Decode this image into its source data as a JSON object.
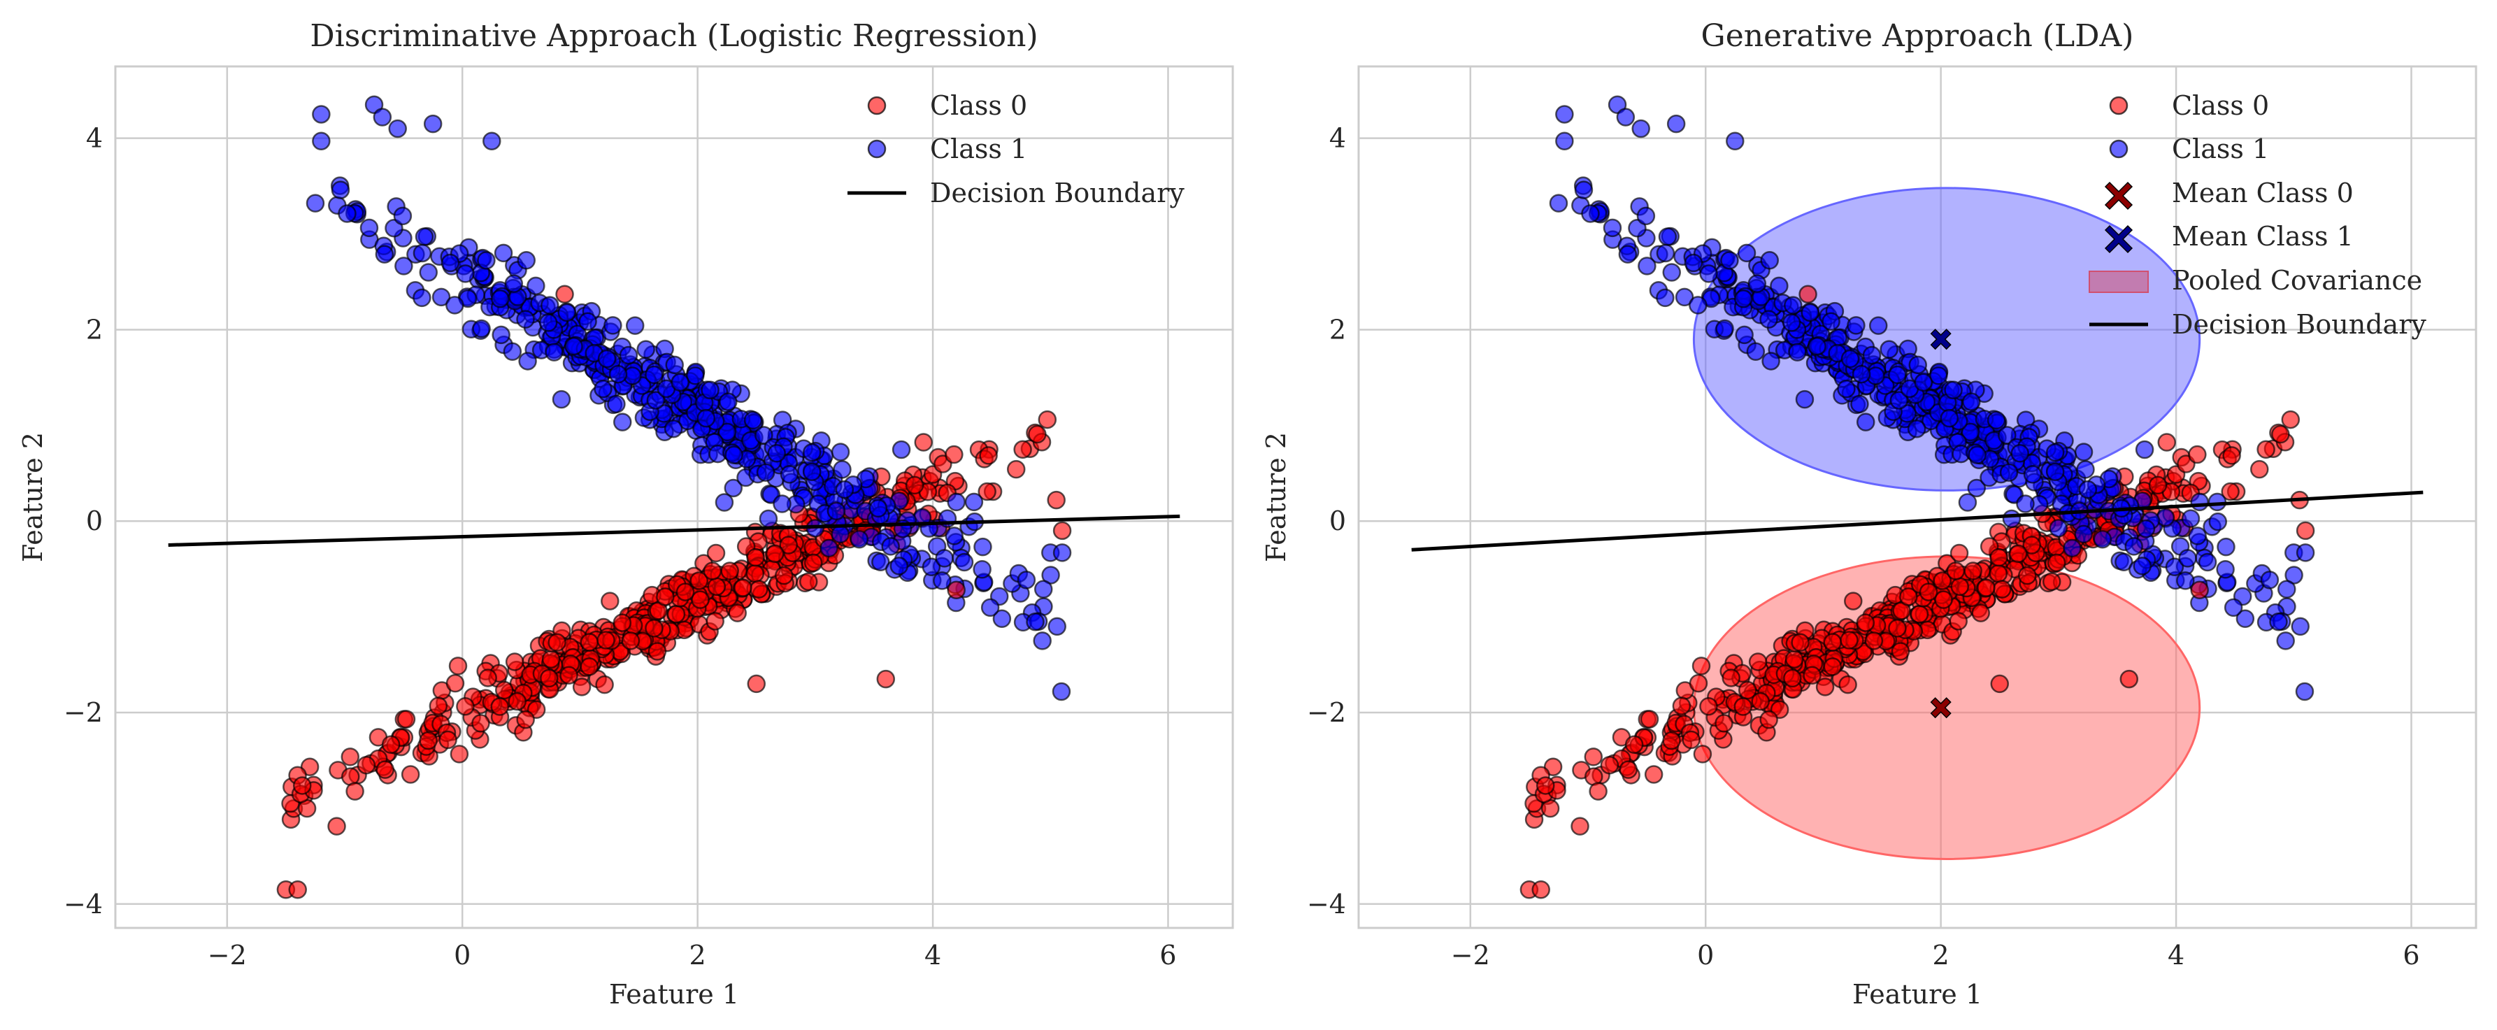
{
  "colors": {
    "class0": "#ff0000",
    "class1": "#0000ff",
    "class0_mean": "#8b0000",
    "class1_mean": "#00008b",
    "boundary": "#000000",
    "grid": "#cccccc",
    "class0_ellipse": "#ff6666",
    "class1_ellipse": "#6666ff"
  },
  "chart_data": [
    {
      "type": "scatter",
      "title": "Discriminative Approach (Logistic Regression)",
      "xlabel": "Feature 1",
      "ylabel": "Feature 2",
      "xlim": [
        -2.95,
        6.55
      ],
      "ylim": [
        -4.25,
        4.75
      ],
      "xticks": [
        -2,
        0,
        2,
        4,
        6
      ],
      "xtick_labels": [
        "−2",
        "0",
        "2",
        "4",
        "6"
      ],
      "yticks": [
        -4,
        -2,
        0,
        2,
        4
      ],
      "ytick_labels": [
        "−4",
        "−2",
        "0",
        "2",
        "4"
      ],
      "grid": true,
      "legend_position": "top-right",
      "legend": [
        "Class 0",
        "Class 1",
        "Decision Boundary"
      ],
      "class0_trend": {
        "x_range": [
          -1.5,
          5.1
        ],
        "intercept": -2.95,
        "slope": 0.6,
        "spread": 0.18,
        "n": 500
      },
      "class1_trend": {
        "x_range": [
          -1.25,
          5.1
        ],
        "intercept": 3.4,
        "slope": -0.7,
        "spread": 0.22,
        "n": 500
      },
      "series": [
        {
          "name": "Class 0",
          "x": [
            -1.5,
            -1.4,
            5.05,
            5.1,
            0.87,
            2.5,
            3.6,
            4.2
          ],
          "y": [
            -3.85,
            -3.85,
            0.22,
            -0.1,
            2.37,
            -1.7,
            -1.65,
            -0.72
          ]
        },
        {
          "name": "Class 1",
          "x": [
            -1.2,
            -1.2,
            -0.75,
            -0.68,
            -0.55,
            -0.25,
            0.25,
            4.2,
            4.35,
            5.0,
            5.1
          ],
          "y": [
            4.25,
            3.97,
            4.35,
            4.22,
            4.1,
            4.15,
            3.97,
            0.2,
            0.2,
            -0.33,
            -0.33
          ]
        }
      ],
      "decision_boundary": {
        "x": [
          -2.5,
          6.1
        ],
        "y": [
          -0.25,
          0.05
        ]
      }
    },
    {
      "type": "scatter",
      "title": "Generative Approach (LDA)",
      "xlabel": "Feature 1",
      "ylabel": "Feature 2",
      "xlim": [
        -2.95,
        6.55
      ],
      "ylim": [
        -4.25,
        4.75
      ],
      "xticks": [
        -2,
        0,
        2,
        4,
        6
      ],
      "xtick_labels": [
        "−2",
        "0",
        "2",
        "4",
        "6"
      ],
      "yticks": [
        -4,
        -2,
        0,
        2,
        4
      ],
      "ytick_labels": [
        "−4",
        "−2",
        "0",
        "2",
        "4"
      ],
      "grid": true,
      "legend_position": "top-right",
      "legend": [
        "Class 0",
        "Class 1",
        "Mean Class 0",
        "Mean Class 1",
        "Pooled Covariance",
        "Decision Boundary"
      ],
      "class0_trend": {
        "x_range": [
          -1.5,
          5.1
        ],
        "intercept": -2.95,
        "slope": 0.6,
        "spread": 0.18,
        "n": 500
      },
      "class1_trend": {
        "x_range": [
          -1.25,
          5.1
        ],
        "intercept": 3.4,
        "slope": -0.7,
        "spread": 0.22,
        "n": 500
      },
      "series": [
        {
          "name": "Class 0",
          "x": [
            -1.5,
            -1.4,
            5.05,
            5.1,
            0.87,
            2.5,
            3.6,
            4.2
          ],
          "y": [
            -3.85,
            -3.85,
            0.22,
            -0.1,
            2.37,
            -1.7,
            -1.65,
            -0.72
          ]
        },
        {
          "name": "Class 1",
          "x": [
            -1.2,
            -1.2,
            -0.75,
            -0.68,
            -0.55,
            -0.25,
            0.25,
            4.2,
            4.35,
            5.0,
            5.1
          ],
          "y": [
            4.25,
            3.97,
            4.35,
            4.22,
            4.1,
            4.15,
            3.97,
            0.2,
            0.2,
            -0.33,
            -0.33
          ]
        }
      ],
      "means": [
        {
          "name": "Mean Class 0",
          "x": 2.0,
          "y": -1.95
        },
        {
          "name": "Mean Class 1",
          "x": 2.0,
          "y": 1.9
        }
      ],
      "covariance_ellipses": [
        {
          "class": 0,
          "cx": 2.05,
          "cy": -1.95,
          "rx": 2.15,
          "ry": 1.58
        },
        {
          "class": 1,
          "cx": 2.05,
          "cy": 1.9,
          "rx": 2.15,
          "ry": 1.58
        }
      ],
      "decision_boundary": {
        "x": [
          -2.5,
          6.1
        ],
        "y": [
          -0.3,
          0.3
        ]
      }
    }
  ]
}
